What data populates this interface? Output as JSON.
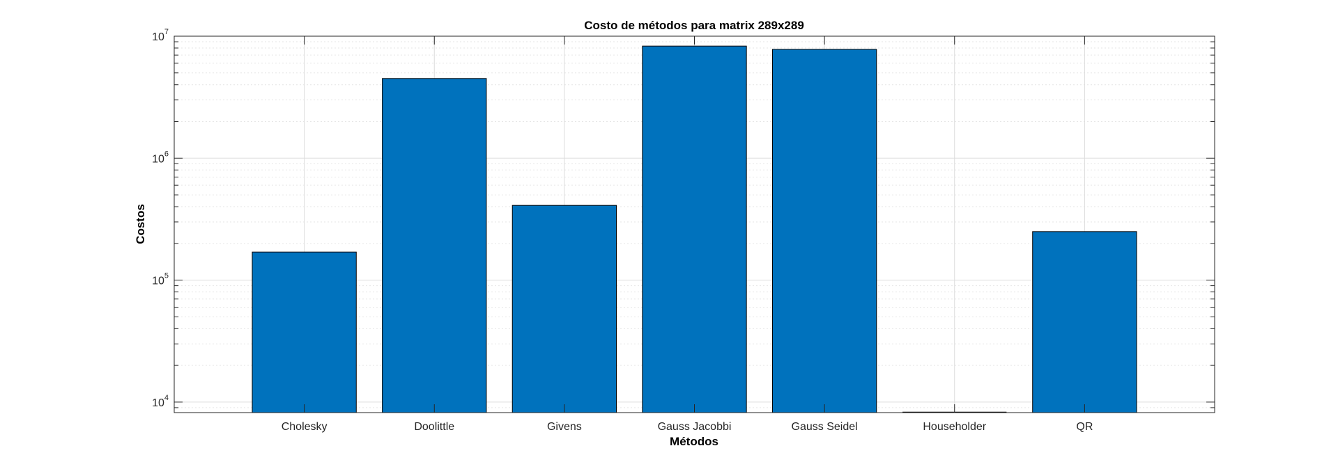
{
  "chart_data": {
    "type": "bar",
    "title": "Costo de métodos para matrix 289x289",
    "xlabel": "Métodos",
    "ylabel": "Costos",
    "categories": [
      "Cholesky",
      "Doolittle",
      "Givens",
      "Gauss Jacobbi",
      "Gauss Seidel",
      "Householder",
      "QR"
    ],
    "values": [
      170000,
      4500000,
      410000,
      8300000,
      7800000,
      0,
      250000
    ],
    "yscale": "log",
    "ylim": [
      8200,
      10000000
    ],
    "yticks": [
      10000,
      100000,
      1000000,
      10000000
    ],
    "ytick_labels": [
      {
        "base": "10",
        "exp": "4"
      },
      {
        "base": "10",
        "exp": "5"
      },
      {
        "base": "10",
        "exp": "6"
      },
      {
        "base": "10",
        "exp": "7"
      }
    ],
    "grid": true,
    "minor_grid": true,
    "colors": {
      "bar": "#0072BD",
      "bar_edge": "#000000",
      "axis": "#262626",
      "grid": "#dcdcdc"
    }
  }
}
